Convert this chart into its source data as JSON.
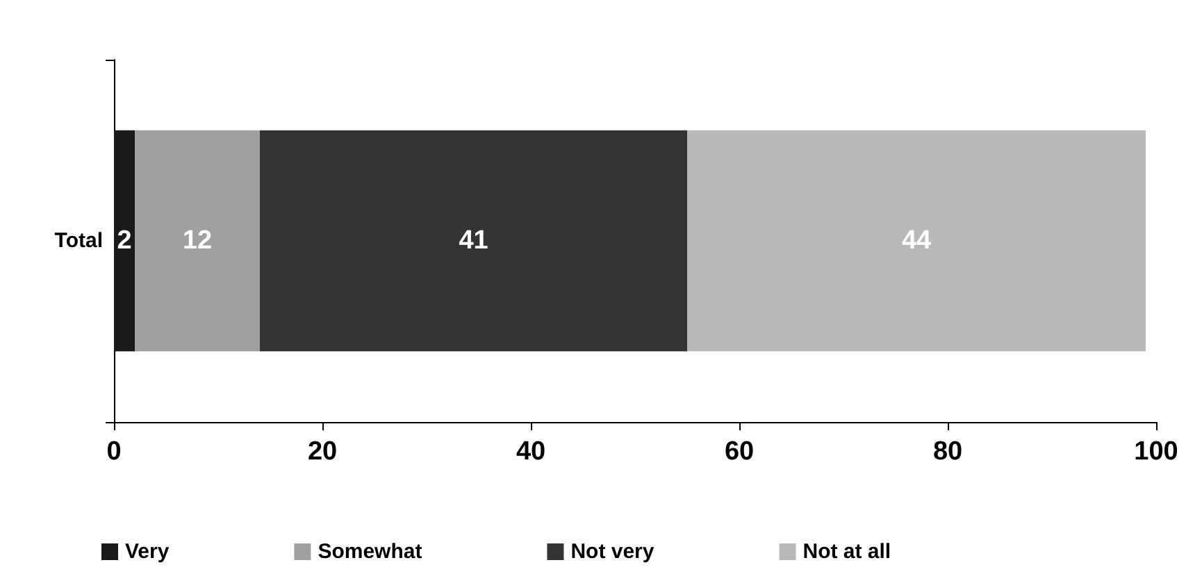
{
  "chart_data": {
    "type": "bar",
    "orientation": "horizontal",
    "stacked": true,
    "categories": [
      "Total"
    ],
    "series": [
      {
        "name": "Very",
        "color": "#1a1a1a",
        "values": [
          2
        ]
      },
      {
        "name": "Somewhat",
        "color": "#a0a0a0",
        "values": [
          12
        ]
      },
      {
        "name": "Not very",
        "color": "#333333",
        "values": [
          41
        ]
      },
      {
        "name": "Not at all",
        "color": "#b8b8b8",
        "values": [
          44
        ]
      }
    ],
    "xlim": [
      0,
      100
    ],
    "xticks": [
      0,
      20,
      40,
      60,
      80,
      100
    ],
    "data_labels": true,
    "grid": false,
    "legend": "bottom"
  }
}
